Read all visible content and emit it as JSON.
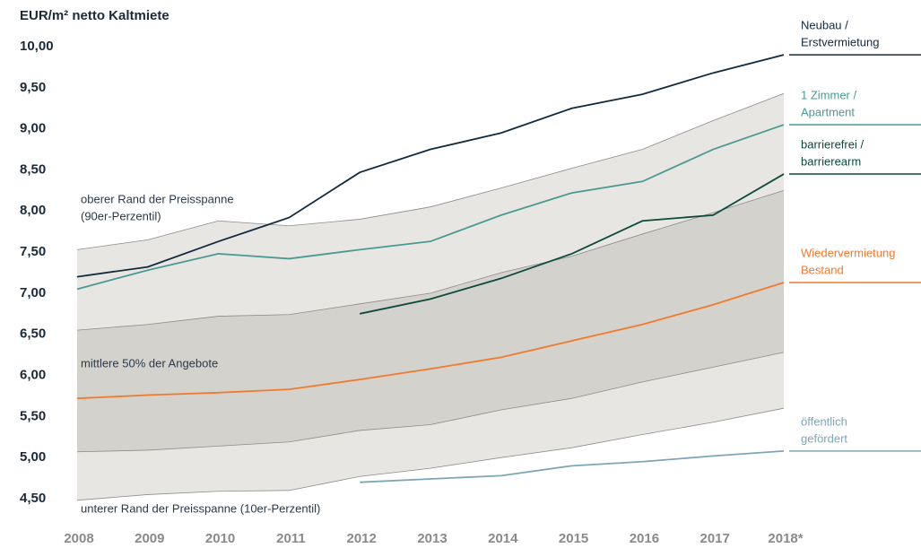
{
  "chart_data": {
    "type": "line",
    "title": "EUR/m² netto Kaltmiete",
    "categories": [
      "2008",
      "2009",
      "2010",
      "2011",
      "2012",
      "2013",
      "2014",
      "2015",
      "2016",
      "2017",
      "2018*"
    ],
    "ylim": [
      4.5,
      10
    ],
    "yticks": [
      {
        "value": 4.5,
        "label": "4,50"
      },
      {
        "value": 5,
        "label": "5,00"
      },
      {
        "value": 5.5,
        "label": "5,50"
      },
      {
        "value": 6,
        "label": "6,00"
      },
      {
        "value": 6.5,
        "label": "6,50"
      },
      {
        "value": 7,
        "label": "7,00"
      },
      {
        "value": 7.5,
        "label": "7,50"
      },
      {
        "value": 8,
        "label": "8,00"
      },
      {
        "value": 8.5,
        "label": "8,50"
      },
      {
        "value": 9,
        "label": "9,00"
      },
      {
        "value": 9.5,
        "label": "9,50"
      },
      {
        "value": 10,
        "label": "10,00"
      }
    ],
    "bands": {
      "outer_color": "#e8e6e2",
      "inner_color": "#d4d2cd",
      "edge_color": "#8c8c8c",
      "p10": [
        4.48,
        4.55,
        4.59,
        4.6,
        4.77,
        4.87,
        5.0,
        5.12,
        5.28,
        5.43,
        5.6
      ],
      "p25": [
        5.07,
        5.09,
        5.14,
        5.19,
        5.33,
        5.4,
        5.58,
        5.72,
        5.92,
        6.1,
        6.28
      ],
      "p75": [
        6.55,
        6.62,
        6.72,
        6.74,
        6.87,
        7.0,
        7.25,
        7.45,
        7.72,
        7.98,
        8.25
      ],
      "p90": [
        7.53,
        7.65,
        7.88,
        7.82,
        7.9,
        8.05,
        8.28,
        8.52,
        8.75,
        9.1,
        9.43
      ]
    },
    "annotations": [
      "oberer Rand der Preisspanne",
      "(90er-Perzentil)",
      "mittlere 50% der Angebote",
      "unterer Rand der Preisspanne (10er-Perzentil)"
    ],
    "series": [
      {
        "name": [
          "Neubau /",
          "Erstvermietung"
        ],
        "color": "#102a40",
        "values": [
          7.2,
          7.32,
          7.63,
          7.92,
          8.47,
          8.75,
          8.95,
          9.25,
          9.42,
          9.68,
          9.9
        ]
      },
      {
        "name": [
          "1 Zimmer /",
          "Apartment"
        ],
        "color": "#4a9a94",
        "values": [
          7.05,
          7.28,
          7.48,
          7.42,
          7.53,
          7.63,
          7.95,
          8.22,
          8.36,
          8.75,
          9.05
        ]
      },
      {
        "name": [
          "barrierefrei /",
          "barrierearm"
        ],
        "color": "#0b4a3e",
        "values": [
          null,
          null,
          null,
          null,
          6.75,
          6.93,
          7.18,
          7.48,
          7.88,
          7.95,
          8.45
        ]
      },
      {
        "name": [
          "Wiedervermietung",
          "Bestand"
        ],
        "color": "#f07a2e",
        "values": [
          5.72,
          5.76,
          5.79,
          5.83,
          5.95,
          6.08,
          6.22,
          6.42,
          6.62,
          6.86,
          7.13
        ]
      },
      {
        "name": [
          "öffentlich",
          "gefördert"
        ],
        "color": "#7fa6b8",
        "values": [
          null,
          null,
          null,
          null,
          4.7,
          4.74,
          4.78,
          4.9,
          4.95,
          5.02,
          5.08
        ]
      }
    ]
  }
}
